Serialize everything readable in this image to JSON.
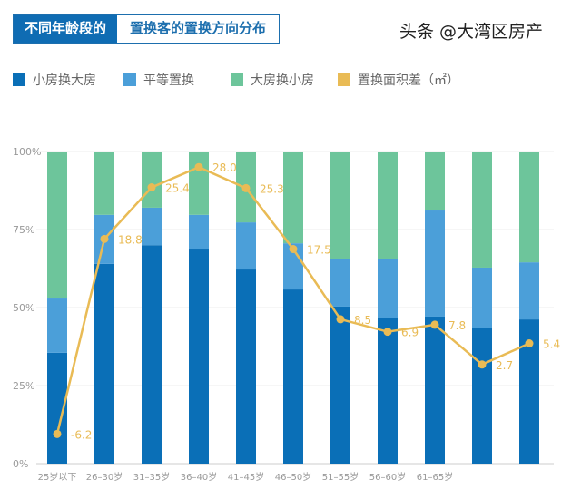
{
  "title": {
    "part1": "不同年龄段的",
    "part2": "置换客的置换方向分布"
  },
  "watermark": "头条 @大湾区房产",
  "colors": {
    "small_to_big": "#0a6fb7",
    "equal": "#4b9fd9",
    "big_to_small": "#6dc59b",
    "area_diff": "#e9bb55"
  },
  "chart_data": {
    "type": "bar",
    "stacked": true,
    "categories": [
      "25岁以下",
      "26–30岁",
      "31–35岁",
      "36–40岁",
      "41–45岁",
      "46–50岁",
      "51–55岁",
      "56–60岁",
      "61–65岁",
      "",
      ""
    ],
    "y_ticks": [
      "0%",
      "25%",
      "50%",
      "75%",
      "100%"
    ],
    "ylim": [
      0,
      100
    ],
    "legend_placement": "top",
    "series": [
      {
        "name": "小房换大房",
        "values": [
          35.5,
          64,
          70,
          68.6,
          62.2,
          55.8,
          50.3,
          46.8,
          47.1,
          43.6,
          46.2
        ]
      },
      {
        "name": "平等置换",
        "values": [
          17.4,
          15.7,
          12,
          11.1,
          15.1,
          14.8,
          15.4,
          18.9,
          34,
          19.2,
          18.3
        ]
      },
      {
        "name": "大房换小房",
        "values": [
          47.1,
          20.3,
          18,
          20.3,
          22.7,
          29.4,
          34.3,
          34.3,
          18.9,
          37.2,
          35.5
        ]
      }
    ],
    "line_series": {
      "name": "置换面积差（㎡）",
      "type": "line",
      "values": [
        -6.2,
        18.8,
        25.4,
        28.0,
        25.3,
        17.5,
        8.5,
        6.9,
        7.8,
        2.7,
        5.4
      ],
      "labels": [
        "-6.2",
        "18.8",
        "25.4",
        "28.0",
        "25.3",
        "17.5",
        "8.5",
        "6.9",
        "7.8",
        "2.7",
        "5.4"
      ],
      "ylim": [
        -10,
        30
      ]
    }
  }
}
